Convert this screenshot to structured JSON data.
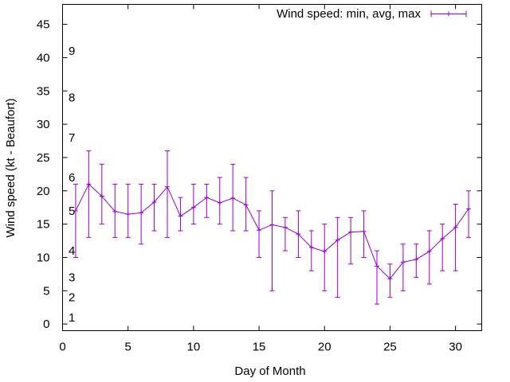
{
  "chart_data": {
    "type": "line",
    "title": "",
    "xlabel": "Day of Month",
    "ylabel": "Wind speed (kt - Beaufort)",
    "xlim": [
      0,
      32
    ],
    "ylim": [
      -1,
      48
    ],
    "x_ticks": [
      0,
      5,
      10,
      15,
      20,
      25,
      30
    ],
    "y_ticks": [
      0,
      5,
      10,
      15,
      20,
      25,
      30,
      35,
      40,
      45
    ],
    "grid": false,
    "legend": {
      "position": "top-right"
    },
    "beaufort_labels": [
      {
        "label": "1",
        "kt": 1
      },
      {
        "label": "2",
        "kt": 4
      },
      {
        "label": "3",
        "kt": 7
      },
      {
        "label": "4",
        "kt": 11
      },
      {
        "label": "5",
        "kt": 17
      },
      {
        "label": "6",
        "kt": 22
      },
      {
        "label": "7",
        "kt": 28
      },
      {
        "label": "8",
        "kt": 34
      },
      {
        "label": "9",
        "kt": 41
      }
    ],
    "series": [
      {
        "name": "Wind speed: min, avg, max",
        "color": "#9400D3",
        "x": [
          1,
          2,
          3,
          4,
          5,
          6,
          7,
          8,
          9,
          10,
          11,
          12,
          13,
          14,
          15,
          16,
          17,
          18,
          19,
          20,
          21,
          22,
          23,
          24,
          25,
          26,
          27,
          28,
          29,
          30,
          31
        ],
        "avg": [
          17,
          21,
          19.2,
          16.9,
          16.5,
          16.7,
          18.3,
          20.6,
          16.2,
          17.5,
          19,
          18.2,
          18.9,
          17.9,
          14.1,
          14.9,
          14.5,
          13.5,
          11.5,
          10.9,
          12.6,
          13.8,
          13.9,
          8.7,
          6.8,
          9.3,
          9.7,
          10.9,
          12.8,
          14.5,
          17.3
        ],
        "min": [
          10,
          13,
          15,
          13,
          13,
          12,
          14,
          13,
          14,
          15,
          16,
          15,
          14,
          14,
          10,
          5,
          11,
          10,
          8,
          5,
          4,
          9,
          10,
          3,
          4,
          5,
          7,
          6,
          8,
          8,
          13
        ],
        "max": [
          21,
          26,
          24,
          21,
          21,
          21,
          21,
          26,
          19,
          21,
          21,
          22,
          24,
          22,
          17,
          20,
          16,
          17,
          14,
          15,
          16,
          16,
          17,
          11,
          9,
          12,
          12,
          14,
          15,
          18,
          20
        ]
      }
    ]
  }
}
